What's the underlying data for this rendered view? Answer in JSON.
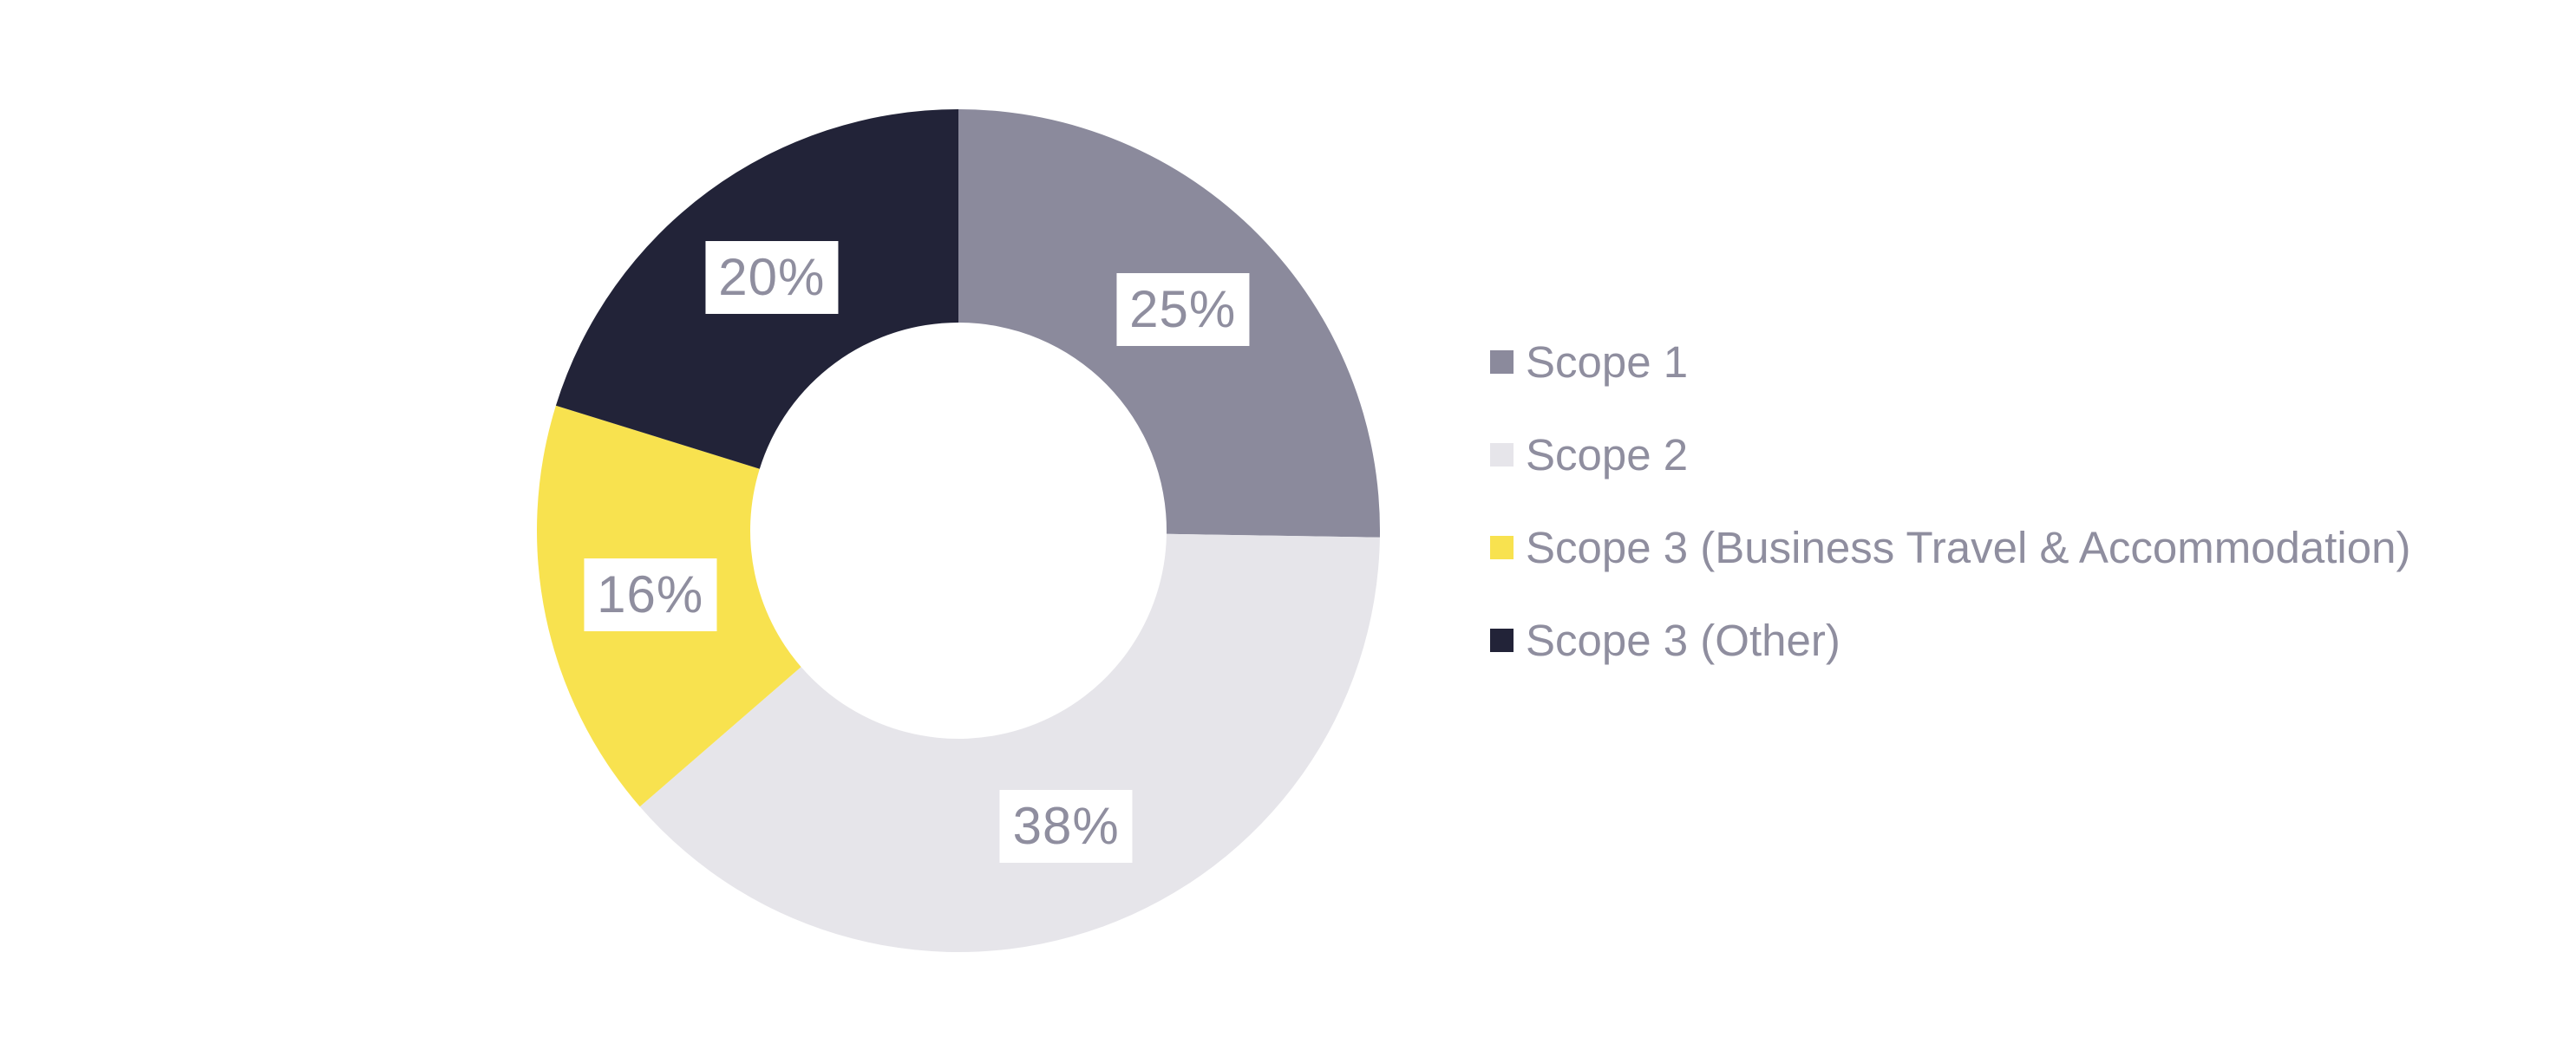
{
  "chart_data": {
    "type": "pie",
    "subtype": "donut",
    "inner_radius_ratio": 0.49,
    "start_angle_deg": 0,
    "direction": "clockwise",
    "legend_position": "right",
    "series": [
      {
        "label": "Scope 1",
        "value": 25,
        "value_label": "25%",
        "color": "#8B8A9C"
      },
      {
        "label": "Scope 2",
        "value": 38,
        "value_label": "38%",
        "color": "#E6E5EA"
      },
      {
        "label": "Scope 3 (Business Travel & Accommodation)",
        "value": 16,
        "value_label": "16%",
        "color": "#F8E24F"
      },
      {
        "label": "Scope 3 (Other)",
        "value": 20,
        "value_label": "20%",
        "color": "#222338"
      }
    ]
  },
  "colors": {
    "background": "#FFFFFF",
    "legend_text": "#8F8E9F",
    "slice_label_text": "#8F8E9F",
    "slice_label_bg": "#FFFFFF"
  }
}
